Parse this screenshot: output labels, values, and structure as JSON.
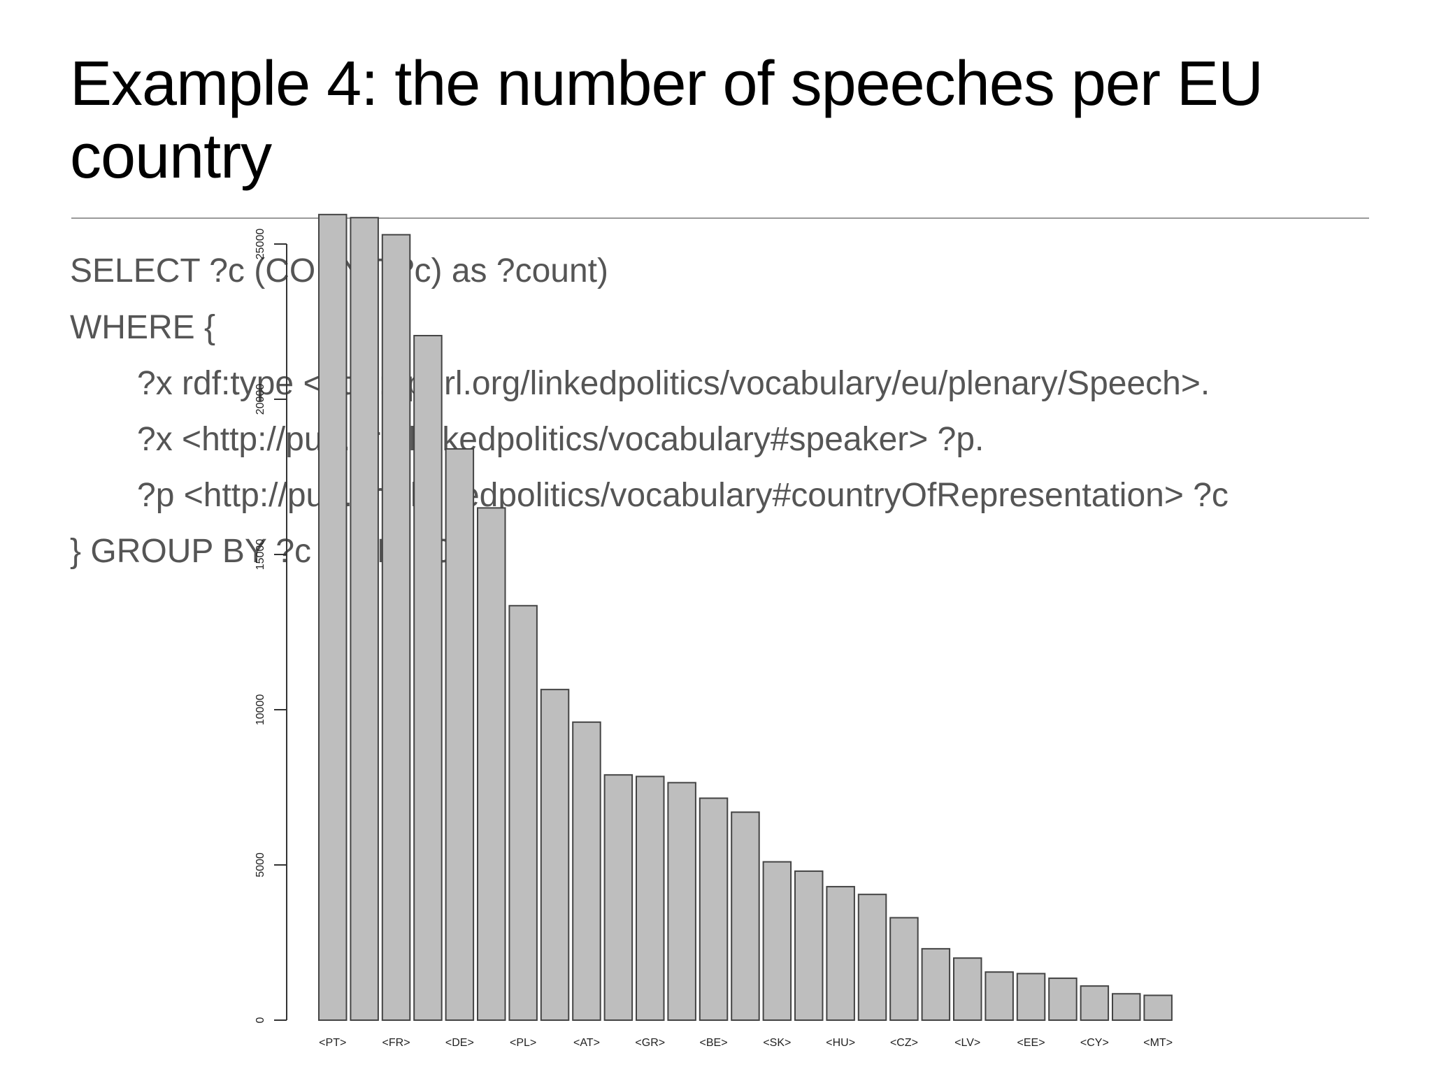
{
  "slide": {
    "title": "Example 4: the number of speeches per EU country",
    "query_lines": [
      "SELECT ?c (COUNT(?c) as ?count)",
      "WHERE {",
      "?x rdf:type <http://purl.org/linkedpolitics/vocabulary/eu/plenary/Speech>.",
      "?x <http://purl.org/linkedpolitics/vocabulary#speaker> ?p.",
      "?p <http://purl.org/linkedpolitics/vocabulary#countryOfRepresentation> ?c",
      "} GROUP BY ?c LIMIT 50"
    ]
  },
  "chart_data": {
    "type": "bar",
    "title": "",
    "xlabel": "",
    "ylabel": "",
    "ylim": [
      0,
      26000
    ],
    "yticks": [
      0,
      5000,
      10000,
      15000,
      20000,
      25000
    ],
    "categories": [
      "<PT>",
      "",
      "<FR>",
      "",
      "<DE>",
      "",
      "<PL>",
      "",
      "<AT>",
      "",
      "<GR>",
      "",
      "<BE>",
      "",
      "<SK>",
      "",
      "<HU>",
      "",
      "<CZ>",
      "",
      "<LV>",
      "",
      "<EE>",
      "",
      "<CY>",
      "",
      "<MT>"
    ],
    "values": [
      25950,
      25850,
      25300,
      22050,
      18400,
      16500,
      13350,
      10650,
      9600,
      7900,
      7850,
      7650,
      7150,
      6700,
      5100,
      4800,
      4300,
      4050,
      3300,
      2300,
      2000,
      1550,
      1500,
      1350,
      1100,
      850,
      800
    ],
    "bar_color": "#bebebe",
    "bar_edge_color": "#444444",
    "grid": false,
    "legend": "none"
  }
}
